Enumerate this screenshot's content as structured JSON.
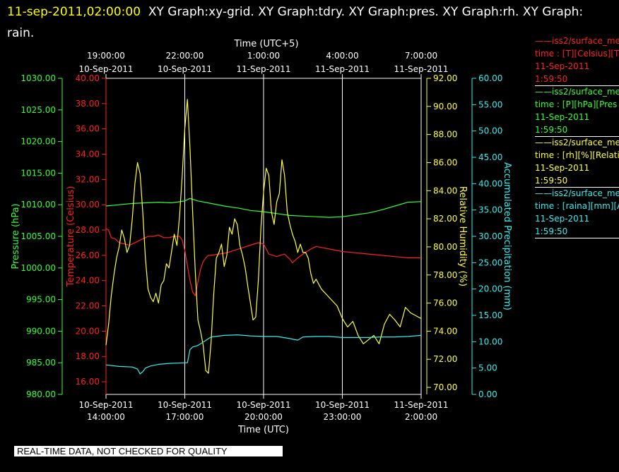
{
  "header": {
    "timestamp": "11-sep-2011,02:00:00",
    "titles": "XY Graph:xy-grid.  XY Graph:tdry.  XY Graph:pres.  XY Graph:rh.  XY Graph: rain."
  },
  "notice": "REAL-TIME DATA, NOT CHECKED FOR QUALITY",
  "legend": [
    {
      "line1": "——iss2/surface_me",
      "line2": "time : [T][Celsius][T",
      "line3": "11-Sep-2011",
      "line4": "1:59:50",
      "color": "#ff2020"
    },
    {
      "line1": "——iss2/surface_me",
      "line2": "time : [P][hPa][Pres",
      "line3": "11-Sep-2011",
      "line4": "1:59:50",
      "color": "#33ff33"
    },
    {
      "line1": "——iss2/surface_me",
      "line2": "time : [rh][%][Relati",
      "line3": "11-Sep-2011",
      "line4": "1:59:50",
      "color": "#ffff33"
    },
    {
      "line1": "——iss2/surface_me",
      "line2": "time : [raina][mm][A",
      "line3": "11-Sep-2011",
      "line4": "1:59:50",
      "color": "#33eeee"
    }
  ],
  "chart_data": {
    "type": "line",
    "grid": true,
    "xlim": [
      0,
      12
    ],
    "x_unit": "hours after 10-Sep-2011 14:00:00 UTC",
    "bottom_axis": {
      "label": "Time (UTC)",
      "ticks": [
        {
          "x": 0,
          "l1": "10-Sep-2011",
          "l2": "14:00:00"
        },
        {
          "x": 3,
          "l1": "10-Sep-2011",
          "l2": "17:00:00"
        },
        {
          "x": 6,
          "l1": "10-Sep-2011",
          "l2": "20:00:00"
        },
        {
          "x": 9,
          "l1": "10-Sep-2011",
          "l2": "23:00:00"
        },
        {
          "x": 12,
          "l1": "11-Sep-2011",
          "l2": "2:00:00"
        }
      ]
    },
    "top_axis": {
      "label": "Time (UTC+5)",
      "ticks": [
        {
          "x": 0,
          "l1": "19:00:00",
          "l2": "10-Sep-2011"
        },
        {
          "x": 3,
          "l1": "22:00:00",
          "l2": "10-Sep-2011"
        },
        {
          "x": 6,
          "l1": "1:00:00",
          "l2": "11-Sep-2011"
        },
        {
          "x": 9,
          "l1": "4:00:00",
          "l2": "11-Sep-2011"
        },
        {
          "x": 12,
          "l1": "7:00:00",
          "l2": "11-Sep-2011"
        }
      ]
    },
    "axes": [
      {
        "id": "pres",
        "label": "Pressure (hPa)",
        "color": "#33ff33",
        "side": "left",
        "min": 980,
        "max": 1030,
        "ticks": [
          980,
          985,
          990,
          995,
          1000,
          1005,
          1010,
          1015,
          1020,
          1025,
          1030
        ],
        "decimals": 2
      },
      {
        "id": "tdry",
        "label": "Temperature (Celsius)",
        "color": "#ff2020",
        "side": "left",
        "min": 15,
        "max": 40,
        "ticks": [
          16,
          18,
          20,
          22,
          24,
          26,
          28,
          30,
          32,
          34,
          36,
          38,
          40
        ],
        "decimals": 2
      },
      {
        "id": "rh",
        "label": "Relative Humidity (%)",
        "color": "#ffff33",
        "side": "right",
        "min": 69.5,
        "max": 92,
        "ticks": [
          70,
          72,
          74,
          76,
          78,
          80,
          82,
          84,
          86,
          88,
          90,
          92
        ],
        "decimals": 2
      },
      {
        "id": "rain",
        "label": "Accumulated Precipitation (mm)",
        "color": "#33eeee",
        "side": "right",
        "min": 0,
        "max": 60,
        "ticks": [
          0,
          5,
          10,
          15,
          20,
          25,
          30,
          35,
          40,
          45,
          50,
          55,
          60
        ],
        "decimals": 2
      }
    ],
    "series": [
      {
        "axis": "tdry",
        "color": "#ff2020",
        "x": [
          0,
          0.1,
          0.2,
          0.35,
          0.5,
          0.7,
          0.9,
          1.0,
          1.2,
          1.4,
          1.6,
          1.8,
          2.0,
          2.2,
          2.4,
          2.6,
          2.8,
          2.9,
          3.0,
          3.1,
          3.2,
          3.3,
          3.4,
          3.5,
          3.6,
          3.7,
          3.8,
          3.9,
          4.0,
          4.3,
          4.6,
          4.9,
          5.2,
          5.5,
          5.8,
          6.0,
          6.2,
          6.5,
          6.8,
          7.0,
          7.1,
          7.3,
          7.5,
          7.8,
          8.0,
          8.5,
          9.0,
          9.5,
          10.0,
          10.5,
          11.0,
          11.5,
          12.0
        ],
        "y": [
          28.1,
          28.0,
          27.4,
          27.3,
          27.0,
          26.9,
          26.8,
          26.9,
          27.1,
          27.3,
          27.5,
          27.5,
          27.6,
          27.4,
          27.4,
          27.5,
          27.5,
          27.2,
          26.4,
          25.2,
          24.0,
          23.1,
          22.8,
          23.9,
          24.9,
          25.5,
          25.8,
          26.0,
          26.0,
          26.1,
          26.2,
          26.4,
          26.6,
          26.8,
          27.0,
          26.9,
          26.1,
          25.9,
          26.1,
          25.7,
          25.4,
          25.8,
          26.1,
          26.5,
          26.7,
          26.5,
          26.3,
          26.2,
          26.1,
          26.0,
          25.9,
          25.8,
          25.8
        ]
      },
      {
        "axis": "pres",
        "color": "#33ff33",
        "x": [
          0,
          0.5,
          1.0,
          1.5,
          2.0,
          2.5,
          3.0,
          3.2,
          3.5,
          4.0,
          4.5,
          5.0,
          5.5,
          6.0,
          6.5,
          7.0,
          7.5,
          8.0,
          8.5,
          9.0,
          9.5,
          10.0,
          10.5,
          11.0,
          11.5,
          12.0
        ],
        "y": [
          1009.8,
          1010.0,
          1010.2,
          1010.3,
          1010.4,
          1010.3,
          1010.6,
          1011.0,
          1010.6,
          1010.2,
          1009.8,
          1009.5,
          1009.1,
          1008.9,
          1008.6,
          1008.3,
          1008.2,
          1008.1,
          1008.0,
          1008.1,
          1008.4,
          1008.7,
          1009.2,
          1009.8,
          1010.4,
          1010.5
        ]
      },
      {
        "axis": "rh",
        "color": "#ffff33",
        "x": [
          0,
          0.1,
          0.2,
          0.3,
          0.4,
          0.5,
          0.6,
          0.7,
          0.8,
          0.9,
          1.0,
          1.1,
          1.2,
          1.3,
          1.4,
          1.5,
          1.6,
          1.7,
          1.8,
          1.9,
          2.0,
          2.1,
          2.2,
          2.3,
          2.4,
          2.5,
          2.6,
          2.7,
          2.8,
          2.9,
          3.0,
          3.1,
          3.2,
          3.3,
          3.4,
          3.5,
          3.6,
          3.7,
          3.8,
          3.9,
          4.0,
          4.1,
          4.2,
          4.3,
          4.4,
          4.5,
          4.6,
          4.7,
          4.8,
          4.9,
          5.0,
          5.1,
          5.2,
          5.3,
          5.4,
          5.5,
          5.6,
          5.7,
          5.8,
          5.9,
          6.0,
          6.1,
          6.2,
          6.3,
          6.4,
          6.5,
          6.6,
          6.7,
          6.8,
          6.9,
          7.0,
          7.1,
          7.2,
          7.3,
          7.4,
          7.5,
          7.6,
          7.7,
          7.8,
          7.9,
          8.0,
          8.2,
          8.4,
          8.6,
          8.8,
          9.0,
          9.2,
          9.4,
          9.6,
          9.8,
          10.0,
          10.2,
          10.4,
          10.6,
          10.8,
          11.0,
          11.2,
          11.4,
          11.6,
          11.8,
          12.0
        ],
        "y": [
          73.0,
          74.5,
          76.5,
          78.0,
          79.2,
          80.0,
          81.2,
          80.6,
          79.6,
          80.1,
          82.0,
          84.5,
          86.0,
          85.2,
          82.5,
          79.2,
          77.0,
          76.4,
          76.1,
          76.7,
          76.0,
          77.3,
          77.6,
          78.8,
          78.5,
          79.7,
          80.9,
          80.1,
          82.2,
          85.0,
          88.4,
          90.5,
          87.0,
          82.5,
          78.2,
          74.8,
          74.0,
          73.0,
          71.2,
          71.0,
          73.2,
          76.6,
          79.2,
          79.6,
          80.2,
          78.6,
          79.4,
          81.4,
          80.9,
          82.0,
          81.6,
          80.1,
          79.4,
          78.5,
          77.2,
          76.0,
          74.8,
          75.0,
          77.6,
          81.4,
          83.9,
          85.6,
          85.1,
          82.5,
          81.6,
          83.2,
          83.8,
          86.2,
          85.1,
          82.5,
          81.6,
          80.9,
          80.4,
          79.6,
          80.2,
          79.6,
          79.6,
          79.2,
          78.1,
          77.4,
          77.7,
          77.0,
          76.6,
          76.2,
          75.8,
          74.9,
          74.3,
          74.7,
          73.7,
          73.1,
          73.4,
          73.7,
          73.1,
          74.5,
          75.2,
          74.8,
          74.3,
          75.7,
          75.3,
          75.1,
          74.9
        ]
      },
      {
        "axis": "rain",
        "color": "#33eeee",
        "x": [
          0,
          0.5,
          1.0,
          1.2,
          1.3,
          1.4,
          1.5,
          1.7,
          2.0,
          2.5,
          3.0,
          3.1,
          3.2,
          3.3,
          3.5,
          4.0,
          4.5,
          5.0,
          5.5,
          6.0,
          6.5,
          7.0,
          7.3,
          7.5,
          8.0,
          8.5,
          9.0,
          9.5,
          10.0,
          10.5,
          11.0,
          11.5,
          12.0
        ],
        "y": [
          5.6,
          5.3,
          5.2,
          4.8,
          3.9,
          4.3,
          5.0,
          5.4,
          5.7,
          5.9,
          6.0,
          6.0,
          8.5,
          9.0,
          9.3,
          10.9,
          11.2,
          11.3,
          11.1,
          11.0,
          11.0,
          10.6,
          10.3,
          10.9,
          11.0,
          11.0,
          10.8,
          10.8,
          10.8,
          10.9,
          10.9,
          11.0,
          11.2
        ]
      }
    ]
  }
}
